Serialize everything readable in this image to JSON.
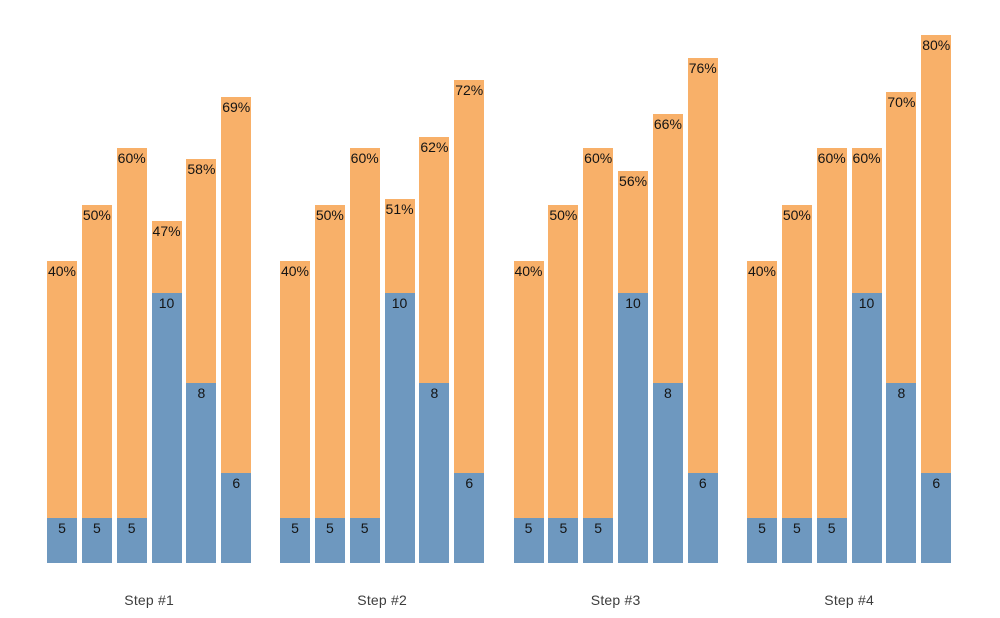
{
  "chart_data": {
    "type": "bar",
    "subtype": "grouped stacked bars (blue base segment + orange remainder), value labels inside blue segments, percent labels inside orange tops",
    "title": "",
    "xlabel": "",
    "ylabel": "",
    "axes_visible": false,
    "gridlines": false,
    "legend": "none",
    "background": "#ffffff",
    "colors": {
      "blue": "#6e98bf",
      "orange": "#f8b069",
      "bar_label_text": "#141414",
      "group_label_text": "#3d3d3d"
    },
    "series": [
      {
        "name": "blue-base-segment",
        "color": "#6e98bf"
      },
      {
        "name": "orange-top-segment",
        "color": "#f8b069"
      }
    ],
    "groups": [
      {
        "label": "Step #1",
        "bars": [
          {
            "blue_value": 5,
            "blue_label": "5",
            "pct": 40,
            "pct_label": "40%"
          },
          {
            "blue_value": 5,
            "blue_label": "5",
            "pct": 50,
            "pct_label": "50%"
          },
          {
            "blue_value": 5,
            "blue_label": "5",
            "pct": 60,
            "pct_label": "60%"
          },
          {
            "blue_value": 10,
            "blue_label": "10",
            "pct": 47,
            "pct_label": "47%"
          },
          {
            "blue_value": 8,
            "blue_label": "8",
            "pct": 58,
            "pct_label": "58%"
          },
          {
            "blue_value": 6,
            "blue_label": "6",
            "pct": 69,
            "pct_label": "69%"
          }
        ]
      },
      {
        "label": "Step #2",
        "bars": [
          {
            "blue_value": 5,
            "blue_label": "5",
            "pct": 40,
            "pct_label": "40%"
          },
          {
            "blue_value": 5,
            "blue_label": "5",
            "pct": 50,
            "pct_label": "50%"
          },
          {
            "blue_value": 5,
            "blue_label": "5",
            "pct": 60,
            "pct_label": "60%"
          },
          {
            "blue_value": 10,
            "blue_label": "10",
            "pct": 51,
            "pct_label": "51%"
          },
          {
            "blue_value": 8,
            "blue_label": "8",
            "pct": 62,
            "pct_label": "62%"
          },
          {
            "blue_value": 6,
            "blue_label": "6",
            "pct": 72,
            "pct_label": "72%"
          }
        ]
      },
      {
        "label": "Step #3",
        "bars": [
          {
            "blue_value": 5,
            "blue_label": "5",
            "pct": 40,
            "pct_label": "40%"
          },
          {
            "blue_value": 5,
            "blue_label": "5",
            "pct": 50,
            "pct_label": "50%"
          },
          {
            "blue_value": 5,
            "blue_label": "5",
            "pct": 60,
            "pct_label": "60%"
          },
          {
            "blue_value": 10,
            "blue_label": "10",
            "pct": 56,
            "pct_label": "56%"
          },
          {
            "blue_value": 8,
            "blue_label": "8",
            "pct": 66,
            "pct_label": "66%"
          },
          {
            "blue_value": 6,
            "blue_label": "6",
            "pct": 76,
            "pct_label": "76%"
          }
        ]
      },
      {
        "label": "Step #4",
        "bars": [
          {
            "blue_value": 5,
            "blue_label": "5",
            "pct": 40,
            "pct_label": "40%"
          },
          {
            "blue_value": 5,
            "blue_label": "5",
            "pct": 50,
            "pct_label": "50%"
          },
          {
            "blue_value": 5,
            "blue_label": "5",
            "pct": 60,
            "pct_label": "60%"
          },
          {
            "blue_value": 10,
            "blue_label": "10",
            "pct": 60,
            "pct_label": "60%"
          },
          {
            "blue_value": 8,
            "blue_label": "8",
            "pct": 70,
            "pct_label": "70%"
          },
          {
            "blue_value": 6,
            "blue_label": "6",
            "pct": 80,
            "pct_label": "80%"
          }
        ]
      }
    ]
  }
}
